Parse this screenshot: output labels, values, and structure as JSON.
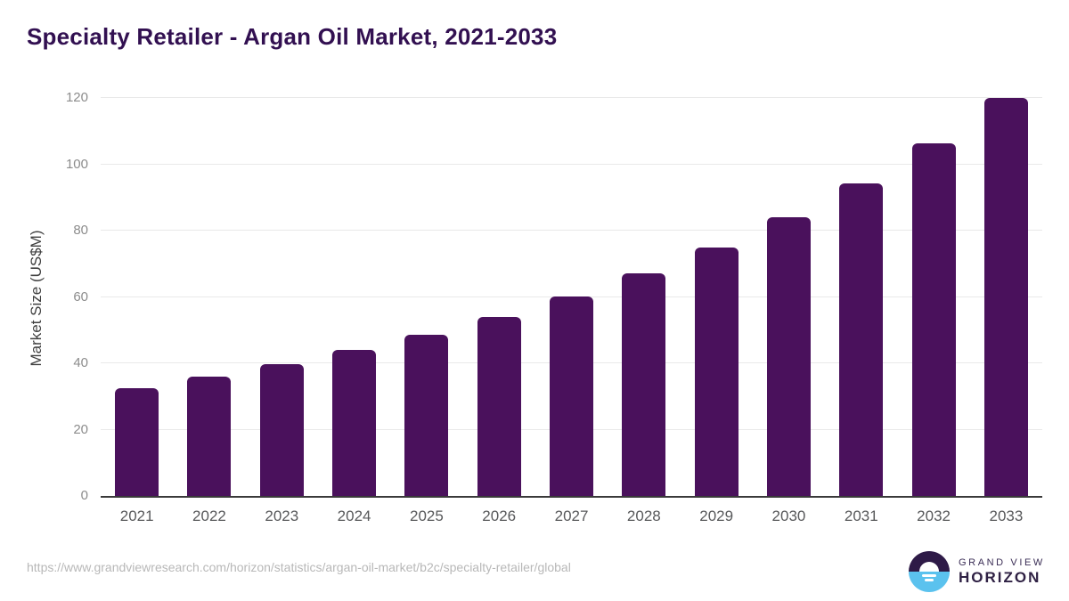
{
  "title": "Specialty Retailer - Argan Oil Market, 2021-2033",
  "source_url": "https://www.grandviewresearch.com/horizon/statistics/argan-oil-market/b2c/specialty-retailer/global",
  "logo": {
    "brand": "GRAND VIEW",
    "product": "HORIZON"
  },
  "colors": {
    "bar": "#4a115c",
    "title": "#321051",
    "gridline": "#e9e9e9",
    "axis_line": "#3a3a3a",
    "ytick_label": "#8c8c8c",
    "xtick_label": "#58595b",
    "logo_purple": "#2e1a47",
    "logo_blue": "#5bc2ee"
  },
  "chart_data": {
    "type": "bar",
    "title": "Specialty Retailer - Argan Oil Market, 2021-2033",
    "categories": [
      "2021",
      "2022",
      "2023",
      "2024",
      "2025",
      "2026",
      "2027",
      "2028",
      "2029",
      "2030",
      "2031",
      "2032",
      "2033"
    ],
    "values": [
      32.4,
      36.1,
      39.8,
      44.0,
      48.6,
      54.0,
      60.2,
      67.0,
      74.9,
      84.0,
      94.3,
      106.3,
      120.0
    ],
    "xlabel": "",
    "ylabel": "Market Size (US$M)",
    "ylim": [
      0,
      120
    ],
    "yticks": [
      0,
      20,
      40,
      60,
      80,
      100,
      120
    ],
    "grid": true,
    "legend": false,
    "bar_color": "#4a115c"
  }
}
